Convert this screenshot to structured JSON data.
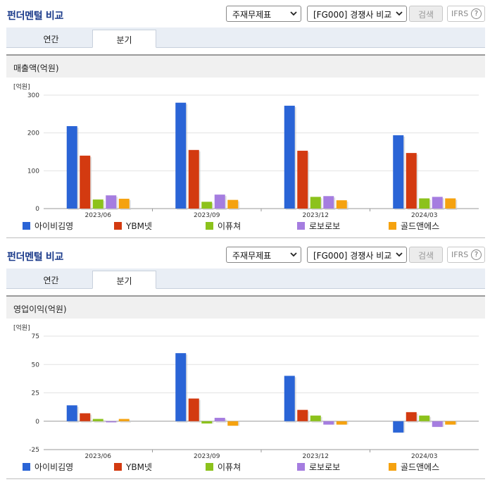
{
  "panels": [
    {
      "title": "펀더멘털 비교",
      "statement_select": "주재무제표",
      "compare_select": "[FG000] 경쟁사 비교",
      "search_label": "검색",
      "ifrs_label": "IFRS",
      "help_glyph": "?",
      "tabs": [
        {
          "label": "연간",
          "active": false
        },
        {
          "label": "분기",
          "active": true
        }
      ],
      "section_title": "매출액(억원)",
      "chart_data": {
        "type": "bar",
        "ylabel": "[억원]",
        "ylim": [
          0,
          300
        ],
        "yticks": [
          0,
          100,
          200,
          300
        ],
        "categories": [
          "2023/06",
          "2023/09",
          "2023/12",
          "2024/03"
        ],
        "series": [
          {
            "name": "아이비김영",
            "color": "#2a64d6",
            "values": [
              218,
              280,
              272,
              194
            ]
          },
          {
            "name": "YBM넷",
            "color": "#d33a10",
            "values": [
              140,
              155,
              153,
              147
            ]
          },
          {
            "name": "이퓨쳐",
            "color": "#8cc21c",
            "values": [
              24,
              18,
              31,
              27
            ]
          },
          {
            "name": "로보로보",
            "color": "#a57de0",
            "values": [
              35,
              37,
              33,
              31
            ]
          },
          {
            "name": "골드앤에스",
            "color": "#f5a20f",
            "values": [
              26,
              23,
              22,
              27
            ]
          }
        ]
      }
    },
    {
      "title": "펀더멘털 비교",
      "statement_select": "주재무제표",
      "compare_select": "[FG000] 경쟁사 비교",
      "search_label": "검색",
      "ifrs_label": "IFRS",
      "help_glyph": "?",
      "tabs": [
        {
          "label": "연간",
          "active": false
        },
        {
          "label": "분기",
          "active": true
        }
      ],
      "section_title": "영업이익(억원)",
      "chart_data": {
        "type": "bar",
        "ylabel": "[억원]",
        "ylim": [
          -25,
          75
        ],
        "yticks": [
          -25,
          0,
          25,
          50,
          75
        ],
        "categories": [
          "2023/06",
          "2023/09",
          "2023/12",
          "2024/03"
        ],
        "series": [
          {
            "name": "아이비김영",
            "color": "#2a64d6",
            "values": [
              14,
              60,
              40,
              -10
            ]
          },
          {
            "name": "YBM넷",
            "color": "#d33a10",
            "values": [
              7,
              20,
              10,
              8
            ]
          },
          {
            "name": "이퓨쳐",
            "color": "#8cc21c",
            "values": [
              2,
              -2,
              5,
              5
            ]
          },
          {
            "name": "로보로보",
            "color": "#a57de0",
            "values": [
              -1,
              3,
              -3,
              -5
            ]
          },
          {
            "name": "골드앤에스",
            "color": "#f5a20f",
            "values": [
              2,
              -4,
              -3,
              -3
            ]
          }
        ]
      }
    }
  ]
}
